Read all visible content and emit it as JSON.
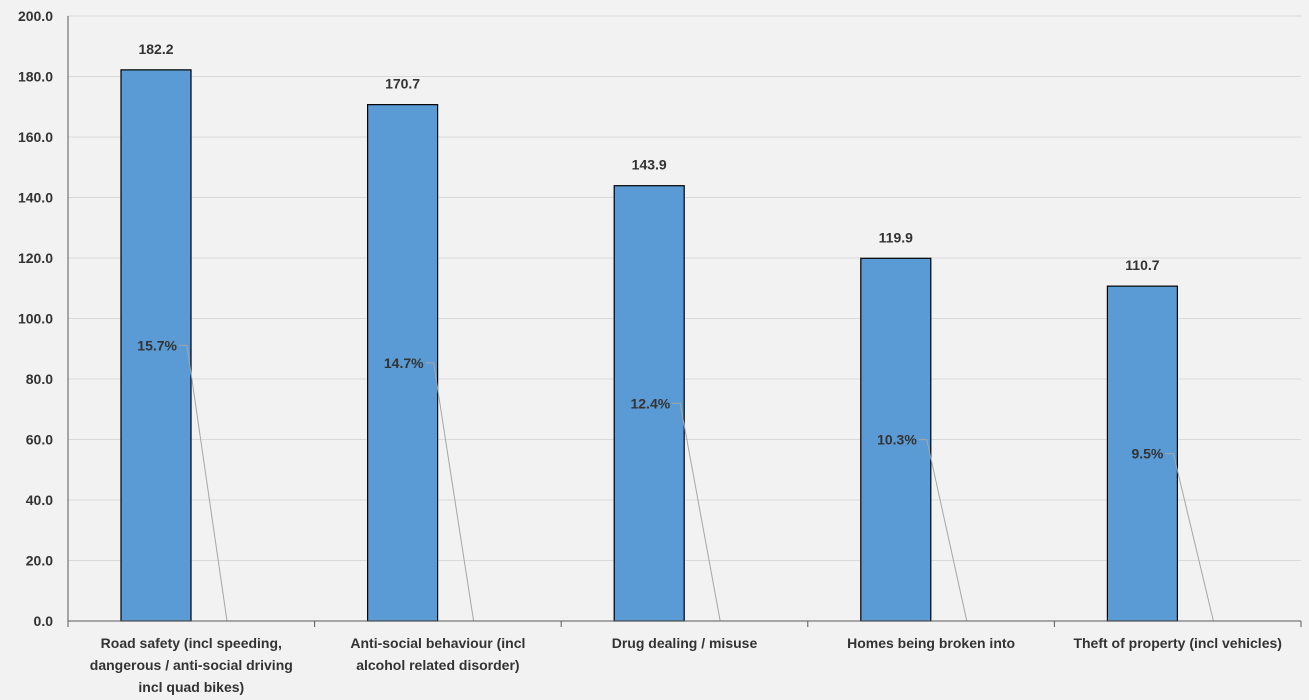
{
  "chart_data": {
    "type": "bar",
    "categories": [
      [
        "Road safety (incl speeding,",
        "dangerous / anti-social driving",
        "incl quad bikes)"
      ],
      [
        "Anti-social behaviour (incl",
        "alcohol related disorder)"
      ],
      [
        "Drug dealing / misuse"
      ],
      [
        "Homes being broken into"
      ],
      [
        "Theft of property (incl vehicles)"
      ]
    ],
    "series": [
      {
        "values": [
          182.2,
          170.7,
          143.9,
          119.9,
          110.7
        ]
      }
    ],
    "value_labels": [
      "182.2",
      "170.7",
      "143.9",
      "119.9",
      "110.7"
    ],
    "percent_labels": [
      "15.7%",
      "14.7%",
      "12.4%",
      "10.3%",
      "9.5%"
    ],
    "ylim": [
      0,
      200
    ],
    "y_ticks": [
      "0.0",
      "20.0",
      "40.0",
      "60.0",
      "80.0",
      "100.0",
      "120.0",
      "140.0",
      "160.0",
      "180.0",
      "200.0"
    ],
    "grid": true,
    "legend": "none",
    "title": "",
    "xlabel": "",
    "ylabel": ""
  },
  "colors": {
    "background": "#f2f2f2",
    "bar_fill": "#5b9bd5",
    "bar_stroke": "#000000",
    "grid": "#d9d9d9",
    "axis": "#595959",
    "leader": "#a6a6a6",
    "text": "#333333"
  }
}
